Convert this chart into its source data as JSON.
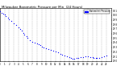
{
  "title": "Milwaukee Barometric Pressure per Min",
  "xlim": [
    0,
    24
  ],
  "ylim": [
    29.0,
    30.15
  ],
  "ytick_vals": [
    29.0,
    29.1,
    29.2,
    29.3,
    29.4,
    29.5,
    29.6,
    29.7,
    29.8,
    29.9,
    30.0,
    30.1
  ],
  "ytick_labels": [
    "29.0",
    "29.1",
    "29.2",
    "29.3",
    "29.4",
    "29.5",
    "29.6",
    "29.7",
    "29.8",
    "29.9",
    "30.0",
    "30.1"
  ],
  "xtick_vals": [
    0,
    1,
    2,
    3,
    4,
    5,
    6,
    7,
    8,
    9,
    10,
    11,
    12,
    13,
    14,
    15,
    16,
    17,
    18,
    19,
    20,
    21,
    22,
    23
  ],
  "xtick_labels": [
    "0",
    "1",
    "2",
    "3",
    "4",
    "5",
    "6",
    "7",
    "8",
    "9",
    "10",
    "11",
    "12",
    "13",
    "14",
    "15",
    "16",
    "17",
    "18",
    "19",
    "20",
    "21",
    "22",
    "23"
  ],
  "dot_color": "#0000ff",
  "dot_size": 0.8,
  "grid_color": "#aaaaaa",
  "bg_color": "#ffffff",
  "legend_color": "#0000ff",
  "legend_label": "Barometric Pressure",
  "x_data": [
    0.0,
    0.3,
    0.7,
    1.0,
    1.3,
    1.7,
    2.0,
    2.5,
    3.0,
    3.5,
    4.0,
    4.3,
    4.7,
    5.0,
    5.3,
    5.7,
    6.0,
    6.5,
    7.0,
    7.5,
    8.0,
    8.3,
    8.7,
    9.0,
    9.5,
    10.0,
    10.5,
    11.0,
    11.5,
    12.0,
    12.5,
    13.0,
    13.5,
    14.0,
    14.5,
    15.0,
    15.3,
    15.7,
    16.0,
    16.5,
    17.0,
    17.5,
    18.0,
    18.5,
    19.0,
    19.5,
    20.0,
    20.3,
    20.7,
    21.0,
    21.5,
    22.0,
    22.5,
    23.0
  ],
  "y_data": [
    30.08,
    30.06,
    30.04,
    30.02,
    29.98,
    29.95,
    29.91,
    29.87,
    29.82,
    29.78,
    29.74,
    29.7,
    29.66,
    29.62,
    29.58,
    29.54,
    29.5,
    29.46,
    29.42,
    29.4,
    29.38,
    29.36,
    29.34,
    29.32,
    29.3,
    29.28,
    29.26,
    29.24,
    29.22,
    29.2,
    29.18,
    29.16,
    29.14,
    29.12,
    29.1,
    29.08,
    29.06,
    29.05,
    29.05,
    29.06,
    29.07,
    29.08,
    29.09,
    29.1,
    29.1,
    29.09,
    29.08,
    29.07,
    29.06,
    29.06,
    29.07,
    29.08,
    29.1,
    29.12
  ]
}
